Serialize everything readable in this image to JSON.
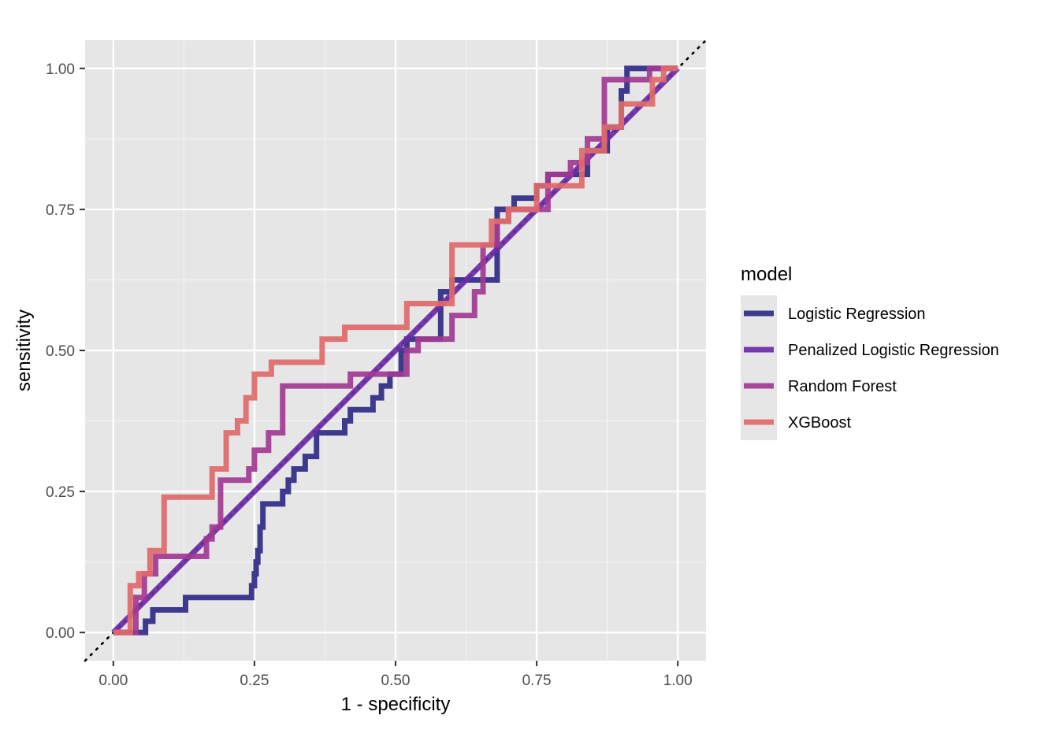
{
  "chart_data": {
    "type": "line",
    "title": "",
    "xlabel": "1 - specificity",
    "ylabel": "sensitivity",
    "xlim": [
      -0.05,
      1.05
    ],
    "ylim": [
      -0.05,
      1.05
    ],
    "xticks": [
      0,
      0.25,
      0.5,
      0.75,
      1
    ],
    "yticks": [
      0,
      0.25,
      0.5,
      0.75,
      1
    ],
    "xtick_labels": [
      "0.00",
      "0.25",
      "0.50",
      "0.75",
      "1.00"
    ],
    "ytick_labels": [
      "0.00",
      "0.25",
      "0.50",
      "0.75",
      "1.00"
    ],
    "grid": true,
    "reference_line": {
      "style": "dotted",
      "color": "#000000",
      "x": [
        -0.05,
        1.05
      ],
      "y": [
        -0.05,
        1.05
      ]
    },
    "legend": {
      "title": "model",
      "position": "right"
    },
    "series": [
      {
        "name": "Logistic Regression",
        "color": "#2f2a86",
        "x": [
          0,
          0.057,
          0.057,
          0.07,
          0.07,
          0.128,
          0.128,
          0.245,
          0.245,
          0.25,
          0.25,
          0.253,
          0.253,
          0.256,
          0.256,
          0.26,
          0.26,
          0.265,
          0.265,
          0.3,
          0.3,
          0.31,
          0.31,
          0.32,
          0.32,
          0.34,
          0.34,
          0.36,
          0.36,
          0.41,
          0.41,
          0.42,
          0.42,
          0.46,
          0.46,
          0.475,
          0.475,
          0.49,
          0.49,
          0.51,
          0.51,
          0.52,
          0.52,
          0.58,
          0.58,
          0.6,
          0.6,
          0.68,
          0.68,
          0.71,
          0.71,
          0.75,
          0.75,
          0.77,
          0.77,
          0.84,
          0.84,
          0.875,
          0.875,
          0.9,
          0.9,
          0.91,
          0.91,
          0.92,
          0.92,
          0.99,
          1.0
        ],
        "y": [
          0,
          0,
          0.02,
          0.02,
          0.04,
          0.04,
          0.062,
          0.062,
          0.083,
          0.083,
          0.104,
          0.104,
          0.125,
          0.125,
          0.145,
          0.145,
          0.187,
          0.187,
          0.228,
          0.228,
          0.25,
          0.25,
          0.27,
          0.27,
          0.29,
          0.29,
          0.312,
          0.312,
          0.354,
          0.354,
          0.375,
          0.375,
          0.395,
          0.395,
          0.416,
          0.416,
          0.437,
          0.437,
          0.458,
          0.458,
          0.5,
          0.5,
          0.52,
          0.52,
          0.604,
          0.604,
          0.625,
          0.625,
          0.75,
          0.75,
          0.77,
          0.77,
          0.792,
          0.792,
          0.812,
          0.812,
          0.854,
          0.854,
          0.896,
          0.896,
          0.96,
          0.96,
          1.0,
          1.0,
          1.0,
          1.0,
          1.0
        ]
      },
      {
        "name": "Penalized Logistic Regression",
        "color": "#6a2aa6",
        "x": [
          0,
          1
        ],
        "y": [
          0,
          1
        ]
      },
      {
        "name": "Random Forest",
        "color": "#a13a92",
        "x": [
          0,
          0.04,
          0.04,
          0.055,
          0.055,
          0.075,
          0.075,
          0.165,
          0.165,
          0.175,
          0.175,
          0.19,
          0.19,
          0.24,
          0.24,
          0.25,
          0.25,
          0.275,
          0.275,
          0.3,
          0.3,
          0.42,
          0.42,
          0.52,
          0.52,
          0.54,
          0.54,
          0.6,
          0.6,
          0.64,
          0.64,
          0.655,
          0.655,
          0.68,
          0.68,
          0.7,
          0.7,
          0.77,
          0.77,
          0.81,
          0.81,
          0.84,
          0.84,
          0.87,
          0.87,
          0.95,
          0.95,
          1.0
        ],
        "y": [
          0,
          0,
          0.062,
          0.062,
          0.104,
          0.104,
          0.135,
          0.135,
          0.166,
          0.166,
          0.187,
          0.187,
          0.27,
          0.27,
          0.29,
          0.29,
          0.323,
          0.323,
          0.354,
          0.354,
          0.437,
          0.437,
          0.458,
          0.458,
          0.5,
          0.5,
          0.52,
          0.52,
          0.562,
          0.562,
          0.604,
          0.604,
          0.687,
          0.687,
          0.729,
          0.729,
          0.75,
          0.75,
          0.812,
          0.812,
          0.833,
          0.833,
          0.875,
          0.875,
          0.98,
          0.98,
          1.0,
          1.0
        ]
      },
      {
        "name": "XGBoost",
        "color": "#e06a6a",
        "x": [
          0,
          0.03,
          0.03,
          0.045,
          0.045,
          0.065,
          0.065,
          0.09,
          0.09,
          0.175,
          0.175,
          0.2,
          0.2,
          0.22,
          0.22,
          0.235,
          0.235,
          0.25,
          0.25,
          0.28,
          0.28,
          0.37,
          0.37,
          0.41,
          0.41,
          0.52,
          0.52,
          0.6,
          0.6,
          0.67,
          0.67,
          0.7,
          0.7,
          0.75,
          0.75,
          0.83,
          0.83,
          0.87,
          0.87,
          0.9,
          0.9,
          0.955,
          0.955,
          0.975,
          0.975,
          1.0
        ],
        "y": [
          0,
          0,
          0.083,
          0.083,
          0.104,
          0.104,
          0.145,
          0.145,
          0.24,
          0.24,
          0.29,
          0.29,
          0.354,
          0.354,
          0.375,
          0.375,
          0.416,
          0.416,
          0.458,
          0.458,
          0.479,
          0.479,
          0.52,
          0.52,
          0.541,
          0.541,
          0.583,
          0.583,
          0.687,
          0.687,
          0.729,
          0.729,
          0.75,
          0.75,
          0.792,
          0.792,
          0.854,
          0.854,
          0.896,
          0.896,
          0.937,
          0.937,
          0.98,
          0.98,
          1.0,
          1.0
        ]
      }
    ]
  }
}
